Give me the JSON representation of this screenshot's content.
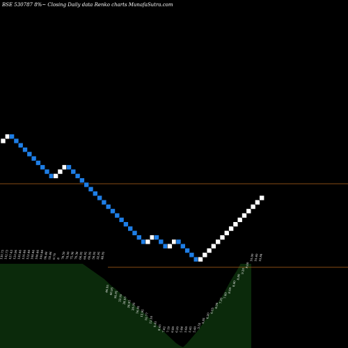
{
  "header": {
    "title": "BSE 530787 8%~  Closing Daily data  Renko  charts MunafaSutra.com"
  },
  "colors": {
    "background": "#000000",
    "up_brick": "#ffffff",
    "down_brick": "#1e7ee6",
    "brick_border": "#000000",
    "reference_line": "#b5651d",
    "volume_fill": "#0b2a0b"
  },
  "chart_data": {
    "type": "renko",
    "bricks": [
      {
        "dir": "up"
      },
      {
        "dir": "up"
      },
      {
        "dir": "down"
      },
      {
        "dir": "down"
      },
      {
        "dir": "down"
      },
      {
        "dir": "down"
      },
      {
        "dir": "down"
      },
      {
        "dir": "down"
      },
      {
        "dir": "down"
      },
      {
        "dir": "down"
      },
      {
        "dir": "down"
      },
      {
        "dir": "down"
      },
      {
        "dir": "up"
      },
      {
        "dir": "up"
      },
      {
        "dir": "up"
      },
      {
        "dir": "down"
      },
      {
        "dir": "down"
      },
      {
        "dir": "down"
      },
      {
        "dir": "down"
      },
      {
        "dir": "down"
      },
      {
        "dir": "down"
      },
      {
        "dir": "down"
      },
      {
        "dir": "down"
      },
      {
        "dir": "down"
      },
      {
        "dir": "down"
      },
      {
        "dir": "down"
      },
      {
        "dir": "down"
      },
      {
        "dir": "down"
      },
      {
        "dir": "down"
      },
      {
        "dir": "down"
      },
      {
        "dir": "down"
      },
      {
        "dir": "down"
      },
      {
        "dir": "down"
      },
      {
        "dir": "up"
      },
      {
        "dir": "up"
      },
      {
        "dir": "down"
      },
      {
        "dir": "down"
      },
      {
        "dir": "down"
      },
      {
        "dir": "up"
      },
      {
        "dir": "up"
      },
      {
        "dir": "down"
      },
      {
        "dir": "down"
      },
      {
        "dir": "down"
      },
      {
        "dir": "down"
      },
      {
        "dir": "down"
      },
      {
        "dir": "up"
      },
      {
        "dir": "up"
      },
      {
        "dir": "up"
      },
      {
        "dir": "up"
      },
      {
        "dir": "up"
      },
      {
        "dir": "up"
      },
      {
        "dir": "up"
      },
      {
        "dir": "up"
      },
      {
        "dir": "up"
      },
      {
        "dir": "up"
      },
      {
        "dir": "up"
      },
      {
        "dir": "up"
      },
      {
        "dir": "up"
      },
      {
        "dir": "up"
      },
      {
        "dir": "up"
      }
    ],
    "brick_labels": [
      "130.73",
      "132.73",
      "127.43",
      "123.96",
      "120.46",
      "116.46",
      "112.46",
      "108.46",
      "104.46",
      "100.46",
      "96.46",
      "92.46",
      "6.70",
      "8",
      "78.50",
      "74.50",
      "75.36",
      "70.36",
      "66.95",
      "64.95",
      "60.95",
      "56.95",
      "52.95",
      "48.95",
      "44.95",
      "40.95",
      "36.95",
      "32.95",
      "28.95",
      "24.95",
      "20.95",
      "16.95",
      "13.95",
      "10.77",
      "12.10",
      "9.41",
      "8.45",
      "7.82",
      "7.19",
      "6.80",
      "6.20",
      "5.84",
      "5.60",
      "5.45",
      "5.40",
      "5.52",
      "5.85",
      "6.20",
      "6.55",
      "6.90",
      "7.25",
      "7.60",
      "8.00",
      "8.40",
      "8.80",
      "9.20",
      "9.60",
      "10.00",
      "10.40",
      "10.84"
    ],
    "reference_lines": [
      {
        "name": "upper-reference-line"
      },
      {
        "name": "lower-reference-line"
      }
    ],
    "volume_profile": [
      1,
      1,
      1,
      1,
      1,
      1,
      1,
      1,
      1,
      1,
      1,
      1,
      1,
      1,
      1,
      1,
      1,
      1,
      1,
      1,
      1,
      1,
      1,
      1,
      0.97,
      0.94,
      0.91,
      0.88,
      0.85,
      0.82,
      0.78,
      0.74,
      0.71,
      0.67,
      0.63,
      0.6,
      0.56,
      0.52,
      0.49,
      0.45,
      0.42,
      0.38,
      0.34,
      0.3,
      0.26,
      0.22,
      0.18,
      0.14,
      0.1,
      0.06,
      0.03,
      0.01,
      0.05,
      0.1,
      0.15,
      0.2,
      0.26,
      0.32,
      0.38,
      0.44,
      0.5,
      0.56,
      0.62,
      0.7,
      0.78,
      0.85,
      0.92,
      1,
      1,
      1,
      1
    ]
  }
}
